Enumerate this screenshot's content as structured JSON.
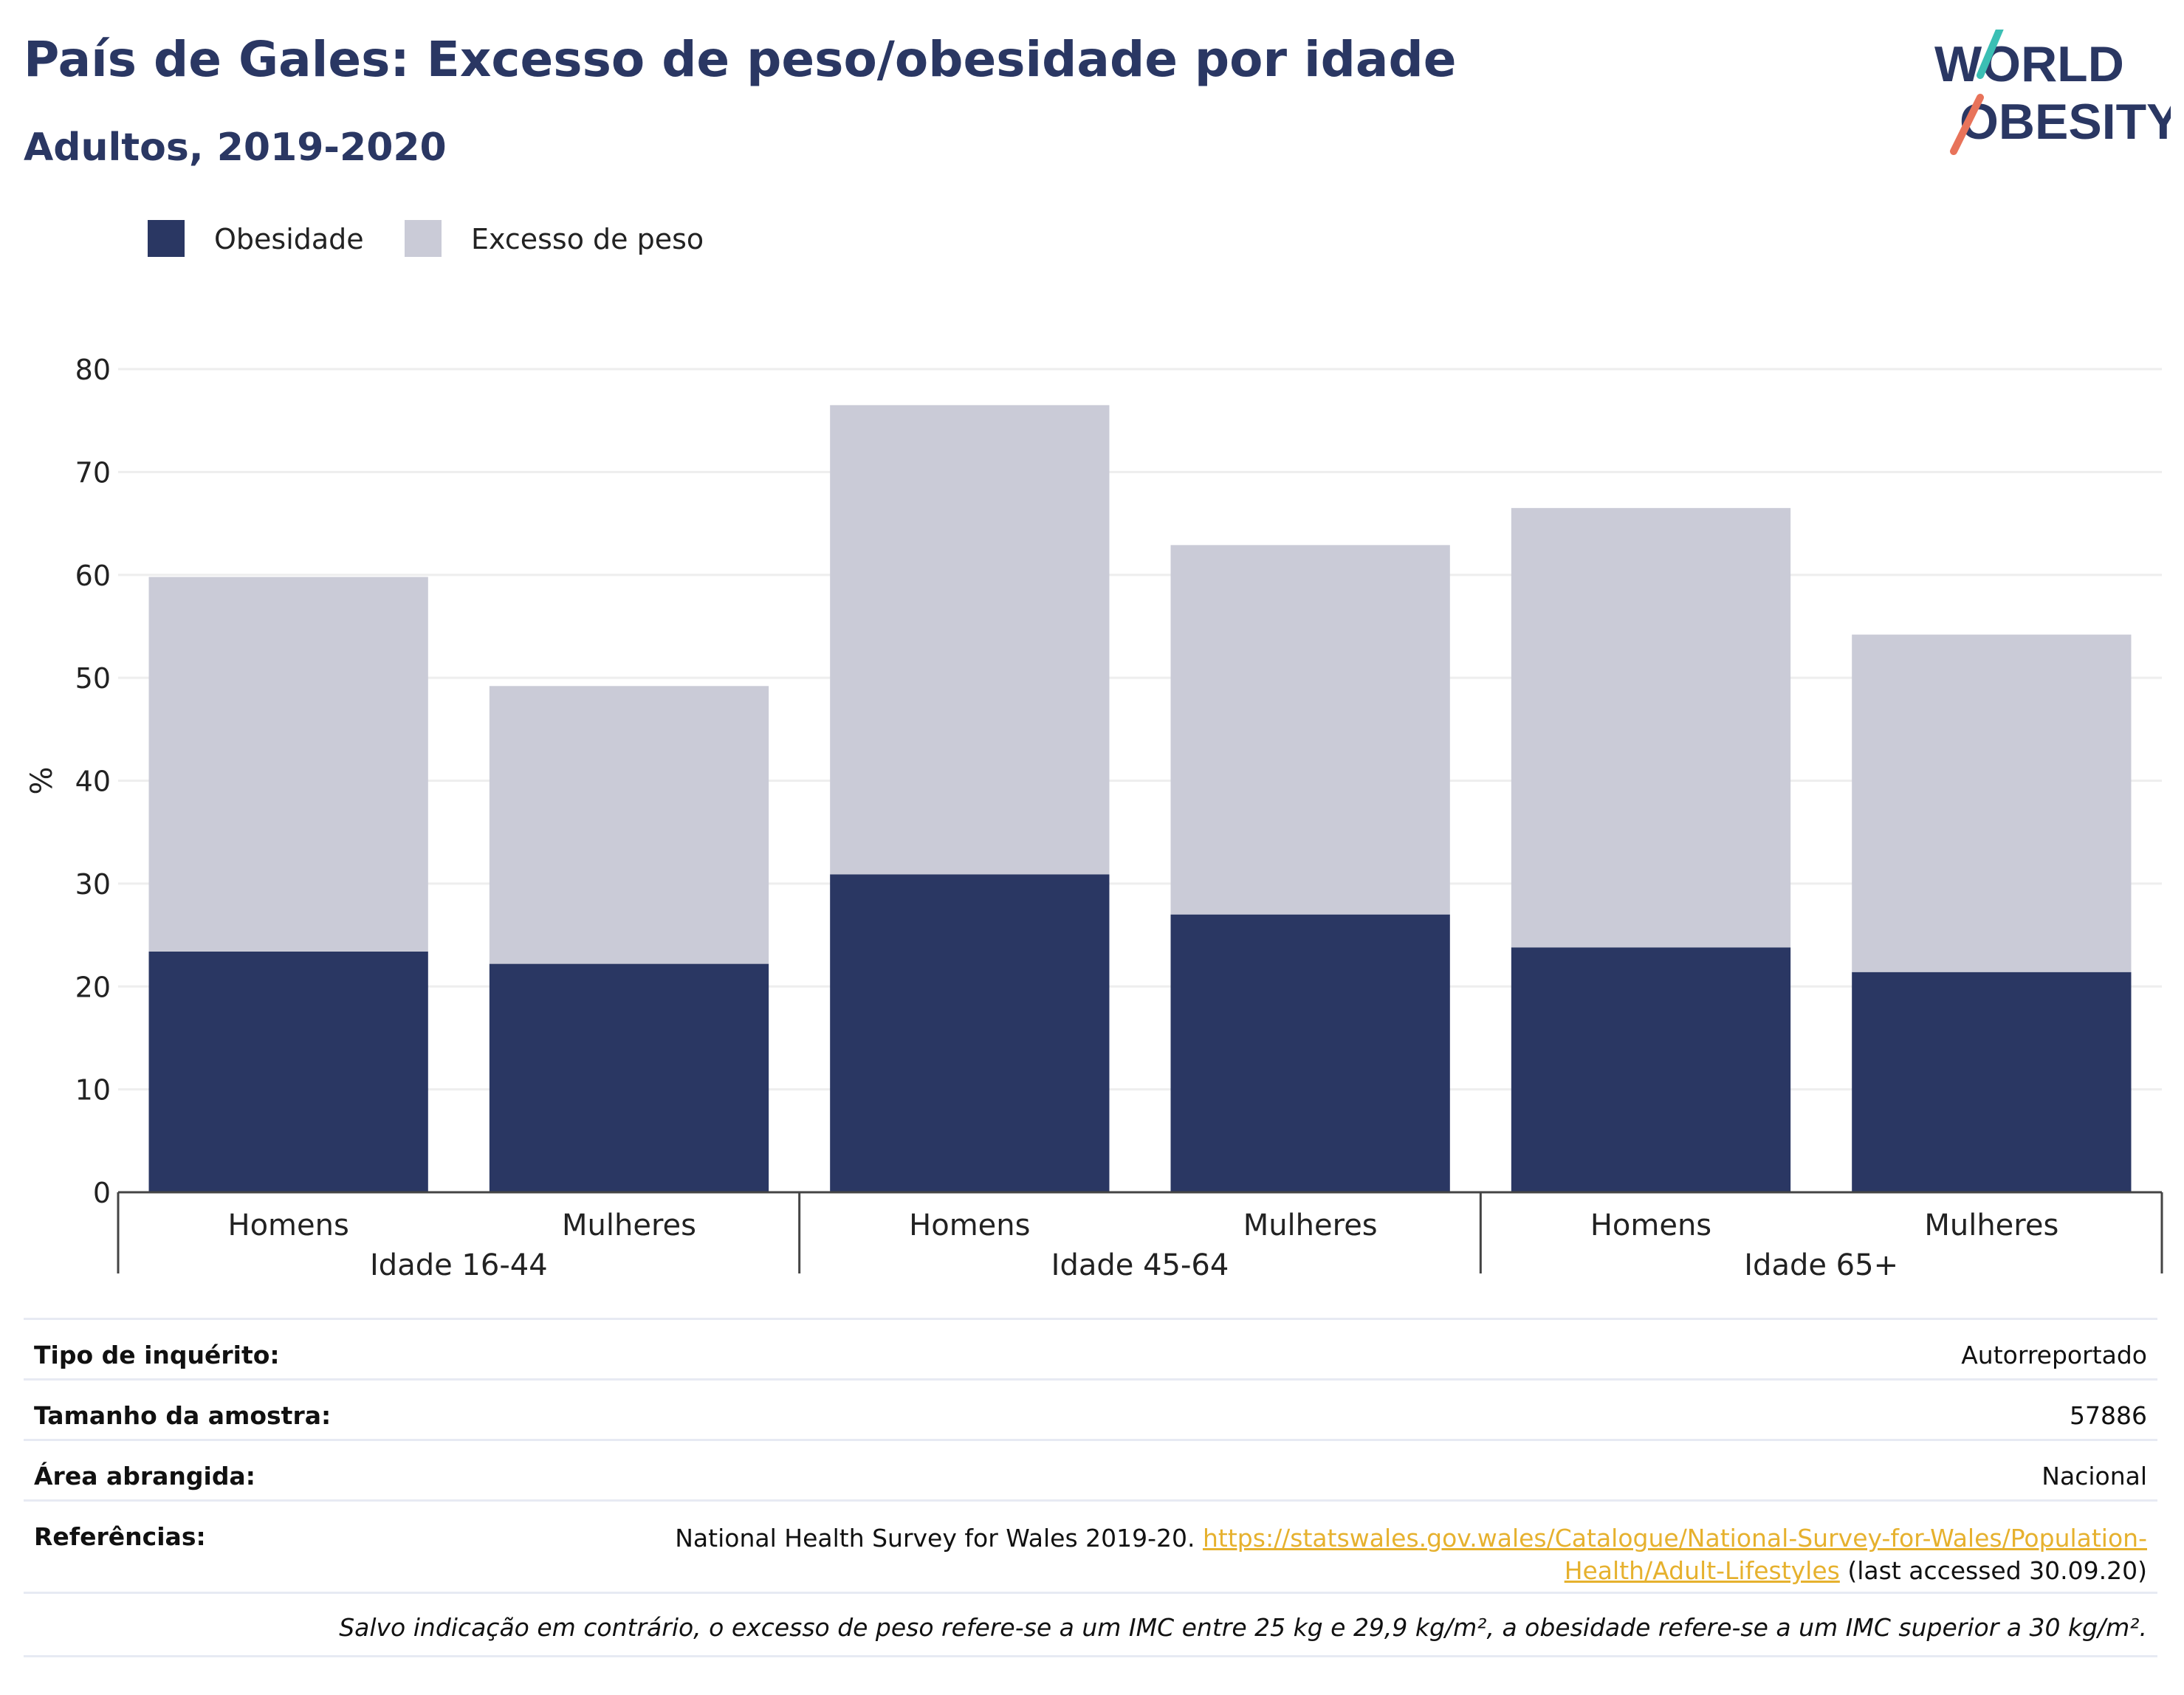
{
  "header": {
    "title": "País de Gales: Excesso de peso/obesidade por idade",
    "subtitle": "Adultos, 2019-2020"
  },
  "logo": {
    "line1": "WORLD",
    "line2": "OBESITY",
    "accent_teal": "#3bbfb4",
    "accent_coral": "#e8735a"
  },
  "colors": {
    "obesity": "#2a3763",
    "overweight": "#cacbd7",
    "text": "#2a3763",
    "link": "#e6b12e"
  },
  "chart_data": {
    "type": "bar",
    "stacked": true,
    "title": "",
    "xlabel": "",
    "ylabel": "%",
    "ylim": [
      0,
      80
    ],
    "yticks": [
      0,
      10,
      20,
      30,
      40,
      50,
      60,
      70,
      80
    ],
    "grid": true,
    "legend_position": "top-left",
    "groups": [
      "Idade 16-44",
      "Idade 45-64",
      "Idade 65+"
    ],
    "categories": [
      "Homens",
      "Mulheres",
      "Homens",
      "Mulheres",
      "Homens",
      "Mulheres"
    ],
    "series": [
      {
        "name": "Obesidade",
        "color": "#2a3763",
        "values": [
          23.4,
          22.2,
          30.9,
          27.0,
          23.8,
          21.4
        ]
      },
      {
        "name": "Excesso de peso",
        "color": "#cacbd7",
        "values": [
          36.4,
          27.0,
          45.6,
          35.9,
          42.7,
          32.8
        ]
      }
    ]
  },
  "info": {
    "rows": [
      {
        "key": "Tipo de inquérito:",
        "value": "Autorreportado"
      },
      {
        "key": "Tamanho da amostra:",
        "value": "57886"
      },
      {
        "key": "Área abrangida:",
        "value": "Nacional"
      }
    ],
    "references": {
      "key": "Referências:",
      "text": "National Health Survey for Wales 2019-20.",
      "link_line1": "https://statswales.gov.wales/Catalogue/National-Survey-for-Wales/Population-",
      "link_line2": "Health/Adult-Lifestyles",
      "suffix": "(last accessed 30.09.20)"
    },
    "note": "Salvo indicação em contrário, o excesso de peso refere-se a um IMC entre 25 kg e 29,9 kg/m², a obesidade refere-se a um IMC superior a 30 kg/m²."
  }
}
